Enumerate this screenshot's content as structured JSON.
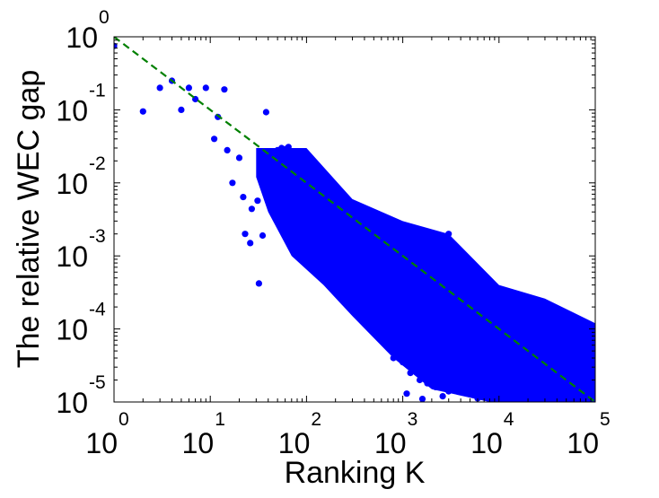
{
  "chart_data": {
    "type": "scatter",
    "title": "",
    "xlabel": "Ranking K",
    "ylabel": "The relative WEC gap",
    "xscale": "log",
    "yscale": "log",
    "xlim": [
      1,
      100000
    ],
    "ylim": [
      1e-05,
      1
    ],
    "grid": false,
    "legend": "none",
    "x_ticks": [
      {
        "value": 1,
        "base": "10",
        "exp": "0"
      },
      {
        "value": 10,
        "base": "10",
        "exp": "1"
      },
      {
        "value": 100,
        "base": "10",
        "exp": "2"
      },
      {
        "value": 1000,
        "base": "10",
        "exp": "3"
      },
      {
        "value": 10000,
        "base": "10",
        "exp": "4"
      },
      {
        "value": 100000,
        "base": "10",
        "exp": "5"
      }
    ],
    "y_ticks": [
      {
        "value": 1,
        "base": "10",
        "exp": "0"
      },
      {
        "value": 0.1,
        "base": "10",
        "exp": "-1"
      },
      {
        "value": 0.01,
        "base": "10",
        "exp": "-2"
      },
      {
        "value": 0.001,
        "base": "10",
        "exp": "-3"
      },
      {
        "value": 0.0001,
        "base": "10",
        "exp": "-4"
      },
      {
        "value": 1e-05,
        "base": "10",
        "exp": "-5"
      }
    ],
    "series": [
      {
        "kind": "scatter",
        "color": "#0000ff",
        "marker": "circle",
        "points": [
          [
            1,
            0.75
          ],
          [
            2,
            0.095
          ],
          [
            3,
            0.2
          ],
          [
            4,
            0.25
          ],
          [
            5,
            0.1
          ],
          [
            6,
            0.2
          ],
          [
            7,
            0.14
          ],
          [
            9,
            0.2
          ],
          [
            12,
            0.08
          ],
          [
            14,
            0.19
          ],
          [
            11,
            0.04
          ],
          [
            15,
            0.028
          ],
          [
            20,
            0.022
          ],
          [
            17,
            0.01
          ],
          [
            22,
            0.0064
          ],
          [
            27,
            0.0044
          ],
          [
            31,
            0.0057
          ],
          [
            23,
            0.002
          ],
          [
            26,
            0.0015
          ],
          [
            35,
            0.0019
          ],
          [
            32,
            0.00042
          ],
          [
            38,
            0.093
          ],
          [
            45,
            0.018
          ],
          [
            50,
            0.028
          ],
          [
            55,
            0.03
          ],
          [
            60,
            0.029
          ],
          [
            65,
            0.031
          ],
          [
            70,
            0.027
          ],
          [
            42,
            0.009
          ],
          [
            48,
            0.007
          ],
          [
            52,
            0.008
          ],
          [
            58,
            0.006
          ],
          [
            62,
            0.005
          ],
          [
            75,
            0.004
          ],
          [
            80,
            0.0045
          ],
          [
            68,
            0.0017
          ],
          [
            72,
            0.0012
          ],
          [
            85,
            0.0025
          ],
          [
            90,
            0.0018
          ],
          [
            95,
            0.0022
          ],
          [
            110,
            0.0016
          ],
          [
            120,
            0.0013
          ],
          [
            130,
            0.0011
          ],
          [
            140,
            0.00077
          ],
          [
            160,
            0.0009
          ],
          [
            100,
            0.0009
          ],
          [
            180,
            0.00055
          ],
          [
            200,
            0.0004
          ],
          [
            250,
            0.00025
          ],
          [
            300,
            0.0002
          ],
          [
            400,
            0.00013
          ],
          [
            500,
            0.0001
          ],
          [
            600,
            0.0001
          ],
          [
            700,
            6e-05
          ],
          [
            800,
            4e-05
          ],
          [
            1000,
            3.5e-05
          ],
          [
            1200,
            2.5e-05
          ],
          [
            1500,
            2e-05
          ],
          [
            1800,
            1.8e-05
          ],
          [
            1100,
            1.3e-05
          ],
          [
            1600,
            1.1e-05
          ],
          [
            2200,
            1.6e-05
          ],
          [
            2600,
            1.2e-05
          ],
          [
            3000,
            1.4e-05
          ],
          [
            1500,
            0.0005
          ],
          [
            2000,
            0.0008
          ],
          [
            2500,
            0.0013
          ],
          [
            3000,
            0.002
          ],
          [
            3500,
            0.0012
          ],
          [
            4000,
            0.001
          ],
          [
            5000,
            0.0007
          ],
          [
            6000,
            0.0006
          ],
          [
            8000,
            0.0004
          ],
          [
            10000,
            0.0003
          ],
          [
            12000,
            0.00028
          ],
          [
            15000,
            0.00022
          ],
          [
            20000,
            0.00018
          ],
          [
            25000,
            0.00015
          ],
          [
            30000,
            0.00013
          ],
          [
            40000,
            0.0001
          ],
          [
            50000,
            9e-05
          ],
          [
            60000,
            8e-05
          ],
          [
            70000,
            7e-05
          ],
          [
            80000,
            6e-05
          ],
          [
            90000,
            5e-05
          ],
          [
            95000,
            4.5e-05
          ],
          [
            6000,
            1.12e-05
          ],
          [
            8000,
            1.12e-05
          ],
          [
            12000,
            1.12e-05
          ],
          [
            20000,
            1.12e-05
          ],
          [
            40000,
            1.12e-05
          ],
          [
            80000,
            1.12e-05
          ],
          [
            7000,
            2e-05
          ],
          [
            10000,
            3e-05
          ],
          [
            15000,
            2.5e-05
          ],
          [
            20000,
            2.2e-05
          ],
          [
            30000,
            2e-05
          ],
          [
            50000,
            1.8e-05
          ],
          [
            70000,
            1.6e-05
          ]
        ]
      },
      {
        "kind": "line",
        "style": "dashed",
        "color": "#008000",
        "points": [
          [
            1,
            1
          ],
          [
            100000,
            1e-05
          ]
        ]
      }
    ]
  }
}
